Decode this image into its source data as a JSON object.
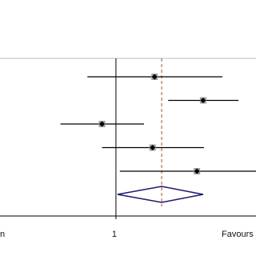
{
  "chart_data": {
    "type": "forest",
    "x_scale": "log",
    "xlim": [
      0.235,
      5.75
    ],
    "xticks": [
      1
    ],
    "x_label_left": "n",
    "x_label_right": "Favours",
    "values": [
      1.62,
      2.97,
      0.84,
      1.58,
      2.75
    ],
    "lower": [
      0.7,
      1.92,
      0.5,
      0.84,
      1.05
    ],
    "upper": [
      3.78,
      4.62,
      1.42,
      3.0,
      5.75
    ],
    "pooled": {
      "value": 1.77,
      "lower": 1.02,
      "upper": 2.97
    },
    "line_color": "#000000",
    "marker_box_color": "#a0a0a0",
    "pooled_line_color": "#a0522d",
    "diamond_color": "#1a1a6e"
  }
}
